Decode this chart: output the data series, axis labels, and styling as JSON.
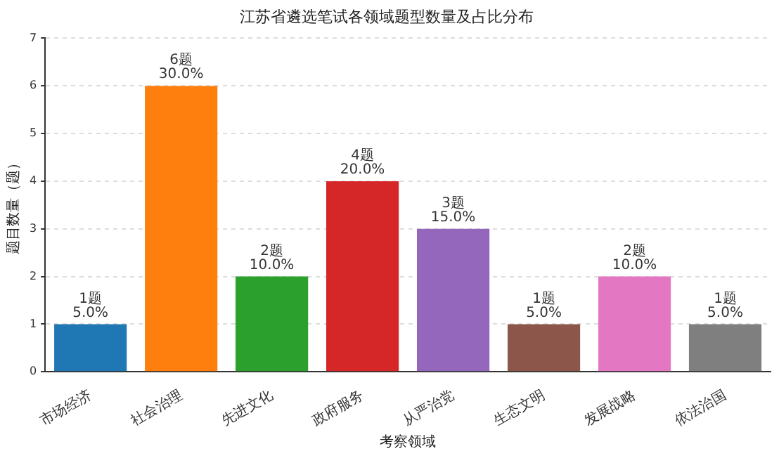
{
  "chart_data": {
    "type": "bar",
    "title": "江苏省遴选笔试各领域题型数量及占比分布",
    "xlabel": "考察领域",
    "ylabel": "题目数量（题）",
    "categories": [
      "市场经济",
      "社会治理",
      "先进文化",
      "政府服务",
      "从严治党",
      "生态文明",
      "发展战略",
      "依法治国"
    ],
    "values": [
      1,
      6,
      2,
      4,
      3,
      1,
      2,
      1
    ],
    "colors": [
      "#1f77b4",
      "#ff7f0e",
      "#2ca02c",
      "#d62728",
      "#9467bd",
      "#8c564b",
      "#e377c2",
      "#7f7f7f"
    ],
    "value_labels": [
      "1题\n5.0%",
      "6题\n30.0%",
      "2题\n10.0%",
      "4题\n20.0%",
      "3题\n15.0%",
      "1题\n5.0%",
      "2题\n10.0%",
      "1题\n5.0%"
    ],
    "ylim": [
      0,
      7
    ],
    "yticks": [
      0,
      1,
      2,
      3,
      4,
      5,
      6,
      7
    ],
    "grid": "y",
    "legend": false
  }
}
